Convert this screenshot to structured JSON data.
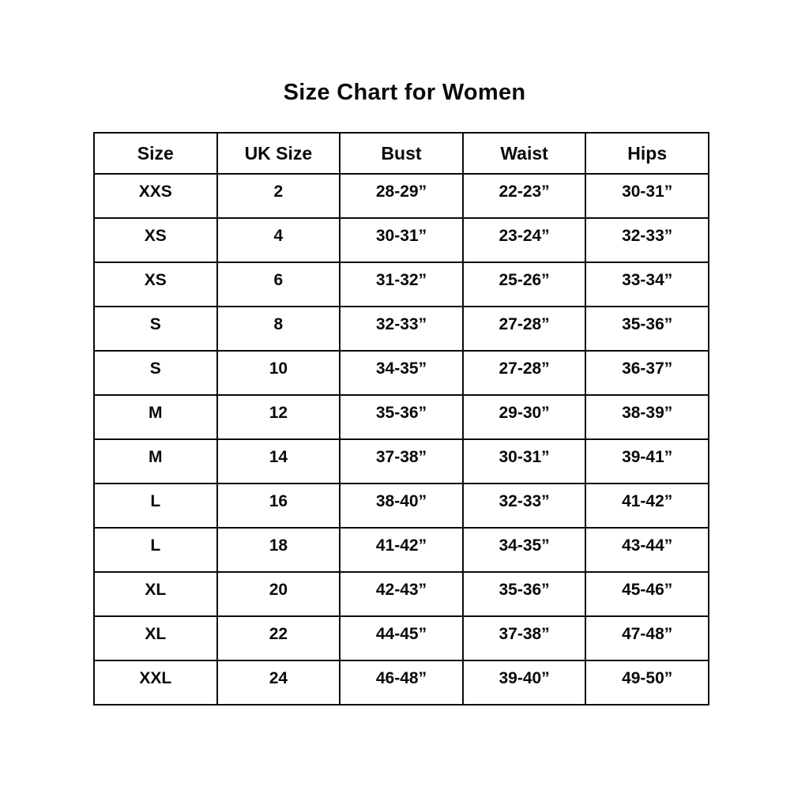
{
  "page": {
    "title": "Size Chart for Women"
  },
  "table": {
    "headers": [
      "Size",
      "UK Size",
      "Bust",
      "Waist",
      "Hips"
    ],
    "rows": [
      [
        "XXS",
        "2",
        "28-29”",
        "22-23”",
        "30-31”"
      ],
      [
        "XS",
        "4",
        "30-31”",
        "23-24”",
        "32-33”"
      ],
      [
        "XS",
        "6",
        "31-32”",
        "25-26”",
        "33-34”"
      ],
      [
        "S",
        "8",
        "32-33”",
        "27-28”",
        "35-36”"
      ],
      [
        "S",
        "10",
        "34-35”",
        "27-28”",
        "36-37”"
      ],
      [
        "M",
        "12",
        "35-36”",
        "29-30”",
        "38-39”"
      ],
      [
        "M",
        "14",
        "37-38”",
        "30-31”",
        "39-41”"
      ],
      [
        "L",
        "16",
        "38-40”",
        "32-33”",
        "41-42”"
      ],
      [
        "L",
        "18",
        "41-42”",
        "34-35”",
        "43-44”"
      ],
      [
        "XL",
        "20",
        "42-43”",
        "35-36”",
        "45-46”"
      ],
      [
        "XL",
        "22",
        "44-45”",
        "37-38”",
        "47-48”"
      ],
      [
        "XXL",
        "24",
        "46-48”",
        "39-40”",
        "49-50”"
      ]
    ]
  },
  "chart_data": {
    "type": "table",
    "title": "Size Chart for Women",
    "columns": [
      "Size",
      "UK Size",
      "Bust",
      "Waist",
      "Hips"
    ],
    "rows": [
      {
        "size": "XXS",
        "uk_size": "2",
        "bust": "28-29”",
        "waist": "22-23”",
        "hips": "30-31”"
      },
      {
        "size": "XS",
        "uk_size": "4",
        "bust": "30-31”",
        "waist": "23-24”",
        "hips": "32-33”"
      },
      {
        "size": "XS",
        "uk_size": "6",
        "bust": "31-32”",
        "waist": "25-26”",
        "hips": "33-34”"
      },
      {
        "size": "S",
        "uk_size": "8",
        "bust": "32-33”",
        "waist": "27-28”",
        "hips": "35-36”"
      },
      {
        "size": "S",
        "uk_size": "10",
        "bust": "34-35”",
        "waist": "27-28”",
        "hips": "36-37”"
      },
      {
        "size": "M",
        "uk_size": "12",
        "bust": "35-36”",
        "waist": "29-30”",
        "hips": "38-39”"
      },
      {
        "size": "M",
        "uk_size": "14",
        "bust": "37-38”",
        "waist": "30-31”",
        "hips": "39-41”"
      },
      {
        "size": "L",
        "uk_size": "16",
        "bust": "38-40”",
        "waist": "32-33”",
        "hips": "41-42”"
      },
      {
        "size": "L",
        "uk_size": "18",
        "bust": "41-42”",
        "waist": "34-35”",
        "hips": "43-44”"
      },
      {
        "size": "XL",
        "uk_size": "20",
        "bust": "42-43”",
        "waist": "35-36”",
        "hips": "45-46”"
      },
      {
        "size": "XL",
        "uk_size": "22",
        "bust": "44-45”",
        "waist": "37-38”",
        "hips": "47-48”"
      },
      {
        "size": "XXL",
        "uk_size": "24",
        "bust": "46-48”",
        "waist": "39-40”",
        "hips": "49-50”"
      }
    ],
    "colors": {
      "text": "#0a0a0a",
      "border": "#0a0a0a",
      "background": "#ffffff"
    }
  }
}
